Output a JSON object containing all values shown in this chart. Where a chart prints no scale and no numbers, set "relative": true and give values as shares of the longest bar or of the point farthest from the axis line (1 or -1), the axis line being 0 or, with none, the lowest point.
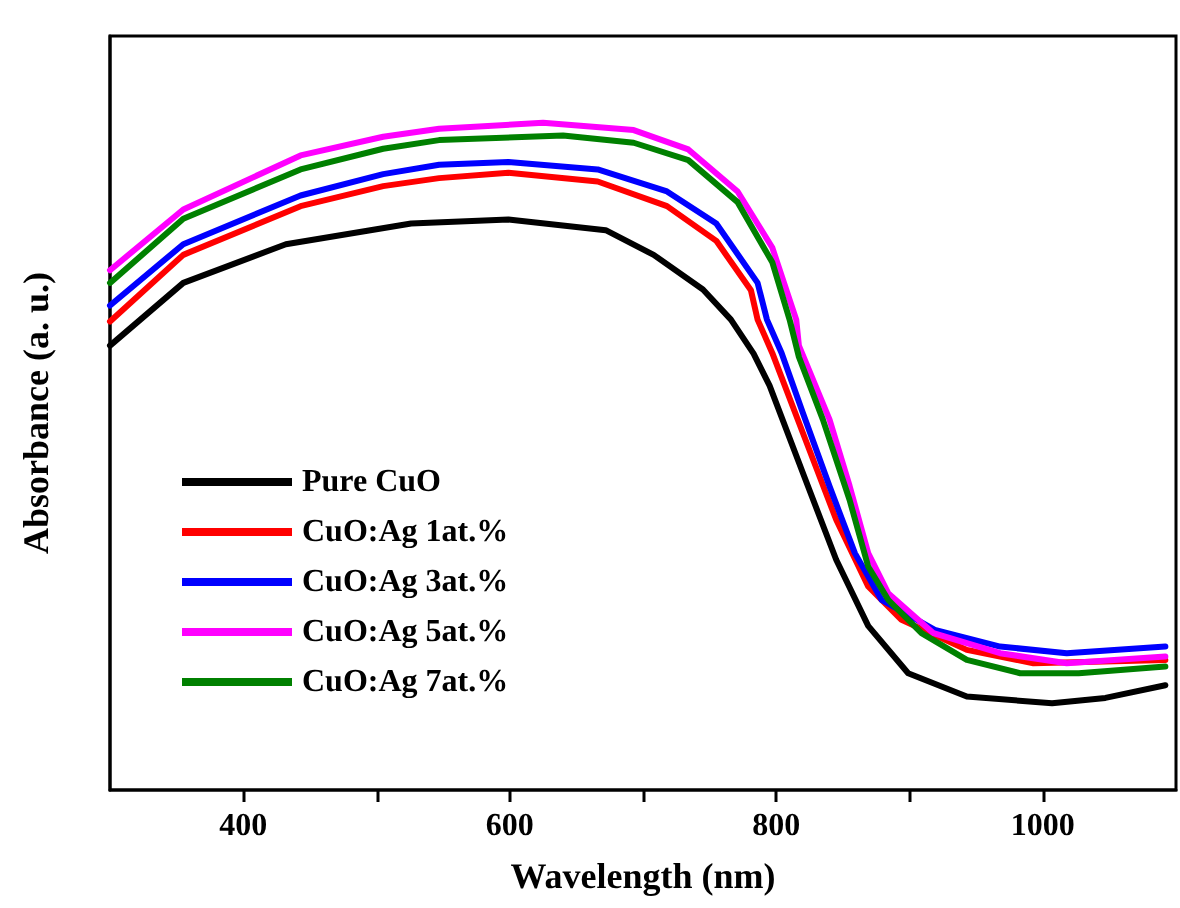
{
  "chart_data": {
    "type": "line",
    "relative": true,
    "xlabel": "Wavelength (nm)",
    "ylabel": "Absorbance (a. u.)",
    "xlim": [
      300,
      1100
    ],
    "xticks": [
      400,
      {
        "value": 500,
        "label": null
      },
      600,
      {
        "value": 700,
        "label": null
      },
      800,
      {
        "value": 900,
        "label": null
      },
      1000
    ],
    "legend": "bottom left",
    "marker": "none",
    "line_style": "solid",
    "series": [
      {
        "name": "Pure CuO",
        "color": "#000000",
        "x": [
          300,
          355,
          432,
          526,
          599,
          672,
          708,
          745,
          766,
          783,
          795,
          820,
          845,
          869,
          899,
          943,
          1007,
          1047,
          1092
        ],
        "values": [
          0.666,
          0.76,
          0.818,
          0.849,
          0.855,
          0.839,
          0.802,
          0.75,
          0.705,
          0.654,
          0.606,
          0.475,
          0.345,
          0.246,
          0.175,
          0.14,
          0.13,
          0.138,
          0.157
        ]
      },
      {
        "name": "CuO:Ag 1at.%",
        "color": "#ff0000",
        "x": [
          300,
          355,
          443,
          505,
          547,
          599,
          666,
          718,
          755,
          781,
          786,
          797,
          820,
          845,
          869,
          894,
          943,
          993,
          1092
        ],
        "values": [
          0.702,
          0.802,
          0.875,
          0.905,
          0.917,
          0.925,
          0.912,
          0.875,
          0.823,
          0.749,
          0.705,
          0.655,
          0.535,
          0.405,
          0.305,
          0.255,
          0.21,
          0.19,
          0.195
        ]
      },
      {
        "name": "CuO:Ag 3at.%",
        "color": "#0000ff",
        "x": [
          300,
          355,
          443,
          505,
          547,
          599,
          666,
          718,
          755,
          786,
          793,
          804,
          820,
          840,
          859,
          879,
          919,
          968,
          1018,
          1092
        ],
        "values": [
          0.726,
          0.818,
          0.891,
          0.923,
          0.937,
          0.941,
          0.93,
          0.897,
          0.849,
          0.76,
          0.705,
          0.655,
          0.565,
          0.455,
          0.355,
          0.285,
          0.24,
          0.215,
          0.205,
          0.215
        ]
      },
      {
        "name": "CuO:Ag 5at.%",
        "color": "#ff00ff",
        "x": [
          300,
          355,
          443,
          505,
          547,
          625,
          693,
          734,
          771,
          797,
          815,
          817,
          840,
          855,
          869,
          884,
          918,
          968,
          1018,
          1092
        ],
        "values": [
          0.779,
          0.87,
          0.951,
          0.979,
          0.991,
          1.0,
          0.989,
          0.96,
          0.897,
          0.813,
          0.705,
          0.666,
          0.555,
          0.456,
          0.355,
          0.295,
          0.235,
          0.205,
          0.19,
          0.2
        ]
      },
      {
        "name": "CuO:Ag 7at.%",
        "color": "#008000",
        "x": [
          300,
          355,
          443,
          505,
          547,
          640,
          693,
          734,
          771,
          797,
          810,
          817,
          835,
          855,
          869,
          884,
          909,
          943,
          983,
          1027,
          1092
        ],
        "values": [
          0.76,
          0.856,
          0.93,
          0.961,
          0.974,
          0.981,
          0.97,
          0.944,
          0.881,
          0.791,
          0.705,
          0.649,
          0.555,
          0.435,
          0.335,
          0.285,
          0.235,
          0.195,
          0.175,
          0.175,
          0.185
        ]
      }
    ]
  }
}
